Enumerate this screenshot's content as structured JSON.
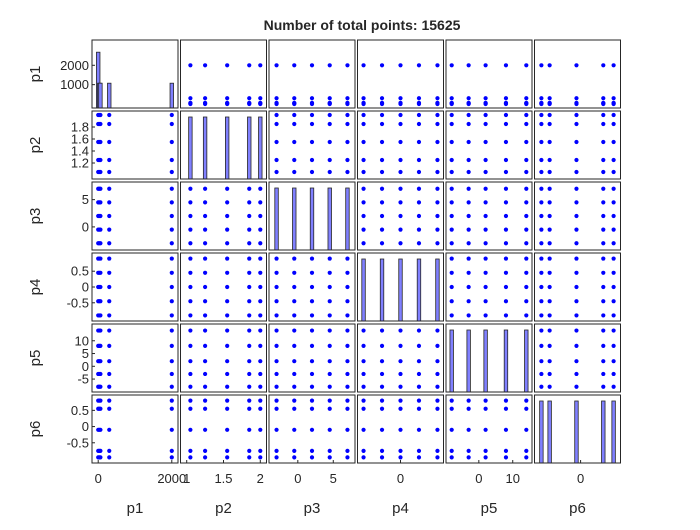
{
  "chart_data": {
    "type": "scatter",
    "layout": "scatter-matrix",
    "title": "Number of total points: 15625",
    "variables": [
      {
        "name": "p1",
        "levels": [
          0,
          30,
          60,
          300,
          2000
        ],
        "ylim": [
          0,
          3100
        ],
        "row_ticks": [
          1000,
          2000
        ],
        "row_tick_labels": [
          "1000",
          "2000"
        ],
        "xlim": [
          -60,
          2060
        ],
        "col_ticks": [
          0,
          2000
        ],
        "col_tick_labels": [
          "0",
          "2000"
        ]
      },
      {
        "name": "p2",
        "levels": [
          1.05,
          1.25,
          1.55,
          1.85,
          2.0
        ],
        "ylim": [
          1.0,
          2.0
        ],
        "row_ticks": [
          1.2,
          1.4,
          1.6,
          1.8
        ],
        "row_tick_labels": [
          "1.2",
          "1.4",
          "1.6",
          "1.8"
        ],
        "xlim": [
          0.97,
          2.03
        ],
        "col_ticks": [
          1,
          1.5,
          2
        ],
        "col_tick_labels": [
          "1",
          "1.5",
          "2"
        ]
      },
      {
        "name": "p3",
        "levels": [
          -3,
          -0.5,
          2,
          4.5,
          7
        ],
        "ylim": [
          -3.5,
          7.5
        ],
        "row_ticks": [
          0,
          5
        ],
        "row_tick_labels": [
          "0",
          "5"
        ],
        "xlim": [
          -3.5,
          7.5
        ],
        "col_ticks": [
          0,
          5
        ],
        "col_tick_labels": [
          "0",
          "5"
        ]
      },
      {
        "name": "p4",
        "levels": [
          -0.9,
          -0.45,
          0,
          0.45,
          0.9
        ],
        "ylim": [
          -0.95,
          0.95
        ],
        "row_ticks": [
          -0.5,
          0,
          0.5
        ],
        "row_tick_labels": [
          "-0.5",
          "0",
          "0.5"
        ],
        "xlim": [
          -0.95,
          0.95
        ],
        "col_ticks": [
          0
        ],
        "col_tick_labels": [
          "0"
        ]
      },
      {
        "name": "p5",
        "levels": [
          -8,
          -3,
          2,
          8,
          14
        ],
        "ylim": [
          -8.5,
          15
        ],
        "row_ticks": [
          -5,
          0,
          5,
          10
        ],
        "row_tick_labels": [
          "-5",
          "0",
          "5",
          "10"
        ],
        "xlim": [
          -8.5,
          14.5
        ],
        "col_ticks": [
          0,
          10
        ],
        "col_tick_labels": [
          "0",
          "10"
        ]
      },
      {
        "name": "p6",
        "levels": [
          -0.95,
          -0.75,
          -0.1,
          0.55,
          0.8
        ],
        "ylim": [
          -1.0,
          0.85
        ],
        "row_ticks": [
          -0.5,
          0,
          0.5
        ],
        "row_tick_labels": [
          "-0.5",
          "0",
          "0.5"
        ],
        "xlim": [
          -1.02,
          0.87
        ],
        "col_ticks": [
          0
        ],
        "col_tick_labels": [
          "0"
        ]
      }
    ],
    "diagonal": {
      "type": "histogram",
      "bar_heights": [
        [
          0.9,
          0.4,
          0.4,
          0.4,
          0.4
        ],
        [
          1,
          1,
          1,
          1,
          1
        ],
        [
          1,
          1,
          1,
          1,
          1
        ],
        [
          1,
          1,
          1,
          1,
          1
        ],
        [
          1,
          1,
          1,
          1,
          1
        ],
        [
          1,
          1,
          1,
          1,
          1
        ]
      ]
    },
    "colors": {
      "marker": "#0000ff",
      "bar_fill": "#8080ff",
      "bar_edge": "#262626",
      "axes": "#262626"
    }
  }
}
